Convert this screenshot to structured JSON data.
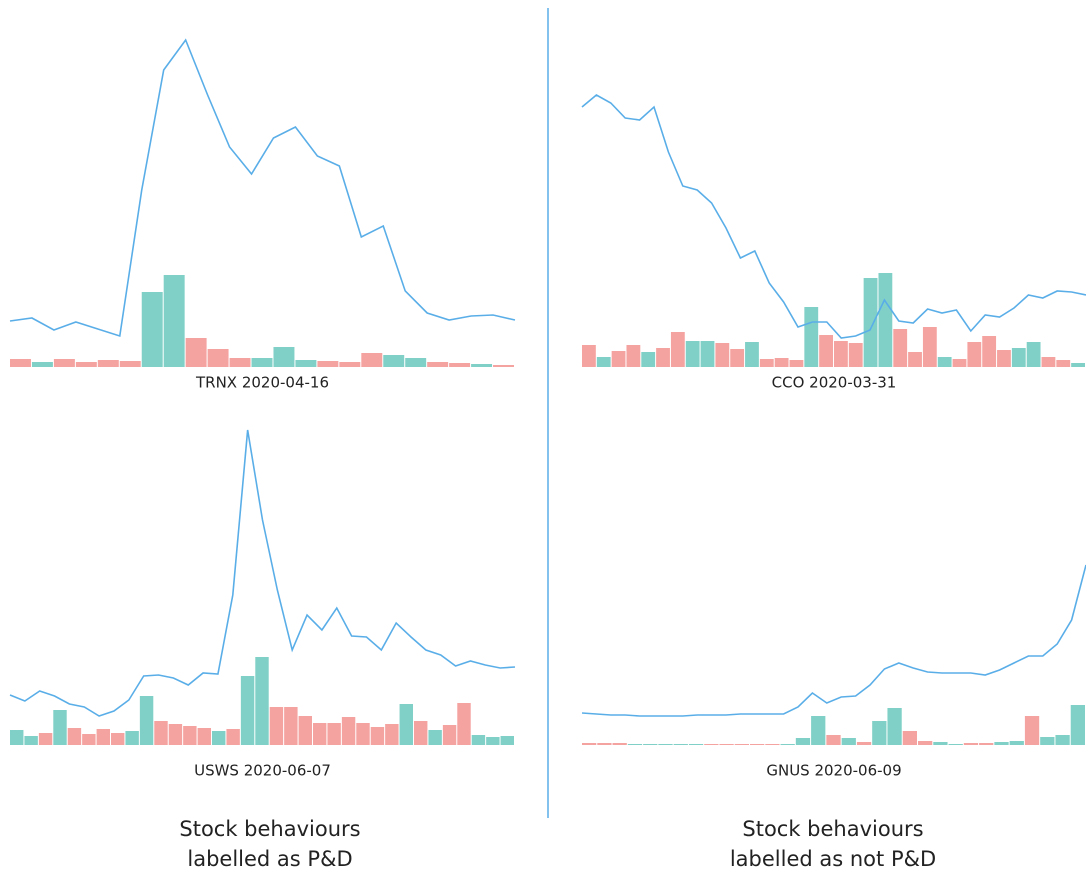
{
  "chart_data": [
    {
      "type": "combo",
      "title": "TRNX 2020-04-16",
      "ylim": [
        0,
        357
      ],
      "line_color": "#5aaee8",
      "line": [
        46,
        49,
        37,
        45,
        38,
        31,
        177,
        297,
        327,
        272,
        220,
        193,
        229,
        240,
        211,
        201,
        130,
        141,
        76,
        54,
        47,
        51,
        52,
        47
      ],
      "bars": [
        8,
        5,
        8,
        5,
        7,
        6,
        75,
        92,
        29,
        18,
        9,
        9,
        20,
        7,
        6,
        5,
        14,
        12,
        9,
        5,
        4,
        3,
        2
      ],
      "bar_colors": [
        "#f5a3a0",
        "#80d0c7",
        "#f5a3a0",
        "#f5a3a0",
        "#f5a3a0",
        "#f5a3a0",
        "#80d0c7",
        "#80d0c7",
        "#f5a3a0",
        "#f5a3a0",
        "#f5a3a0",
        "#80d0c7",
        "#80d0c7",
        "#80d0c7",
        "#f5a3a0",
        "#f5a3a0",
        "#f5a3a0",
        "#80d0c7",
        "#80d0c7",
        "#f5a3a0",
        "#f5a3a0",
        "#80d0c7",
        "#f5a3a0"
      ]
    },
    {
      "type": "combo",
      "title": "CCO 2020-03-31",
      "ylim": [
        0,
        357
      ],
      "line_color": "#5aaee8",
      "line": [
        260,
        272,
        264,
        249,
        247,
        260,
        215,
        181,
        177,
        164,
        139,
        109,
        116,
        84,
        65,
        40,
        45,
        45,
        29,
        31,
        37,
        67,
        46,
        44,
        58,
        54,
        57,
        36,
        52,
        50,
        59,
        72,
        69,
        76,
        75,
        72
      ],
      "bars": [
        22,
        10,
        16,
        22,
        15,
        19,
        35,
        26,
        26,
        24,
        18,
        25,
        8,
        9,
        7,
        60,
        32,
        26,
        24,
        89,
        94,
        38,
        15,
        40,
        10,
        8,
        25,
        31,
        17,
        19,
        25,
        10,
        7,
        4
      ],
      "bar_colors": [
        "#f5a3a0",
        "#80d0c7",
        "#f5a3a0",
        "#f5a3a0",
        "#80d0c7",
        "#f5a3a0",
        "#f5a3a0",
        "#80d0c7",
        "#80d0c7",
        "#f5a3a0",
        "#f5a3a0",
        "#80d0c7",
        "#f5a3a0",
        "#f5a3a0",
        "#f5a3a0",
        "#80d0c7",
        "#f5a3a0",
        "#f5a3a0",
        "#f5a3a0",
        "#80d0c7",
        "#80d0c7",
        "#f5a3a0",
        "#f5a3a0",
        "#f5a3a0",
        "#80d0c7",
        "#f5a3a0",
        "#f5a3a0",
        "#f5a3a0",
        "#f5a3a0",
        "#80d0c7",
        "#80d0c7",
        "#f5a3a0",
        "#f5a3a0",
        "#80d0c7"
      ]
    },
    {
      "type": "combo",
      "title": "USWS 2020-06-07",
      "ylim": [
        0,
        335
      ],
      "line_color": "#5aaee8",
      "line": [
        50,
        44,
        54,
        49,
        41,
        38,
        29,
        34,
        45,
        69,
        70,
        67,
        60,
        72,
        71,
        150,
        315,
        225,
        155,
        95,
        130,
        115,
        137,
        109,
        108,
        95,
        122,
        108,
        95,
        90,
        79,
        84,
        80,
        77,
        78
      ],
      "bars": [
        15,
        9,
        12,
        35,
        17,
        11,
        16,
        12,
        14,
        49,
        24,
        21,
        19,
        17,
        14,
        16,
        69,
        88,
        38,
        38,
        29,
        22,
        22,
        28,
        22,
        18,
        21,
        41,
        24,
        15,
        20,
        42,
        10,
        8,
        9
      ],
      "bar_colors": [
        "#80d0c7",
        "#80d0c7",
        "#f5a3a0",
        "#80d0c7",
        "#f5a3a0",
        "#f5a3a0",
        "#f5a3a0",
        "#f5a3a0",
        "#80d0c7",
        "#80d0c7",
        "#f5a3a0",
        "#f5a3a0",
        "#f5a3a0",
        "#f5a3a0",
        "#80d0c7",
        "#f5a3a0",
        "#80d0c7",
        "#80d0c7",
        "#f5a3a0",
        "#f5a3a0",
        "#f5a3a0",
        "#f5a3a0",
        "#f5a3a0",
        "#f5a3a0",
        "#f5a3a0",
        "#f5a3a0",
        "#f5a3a0",
        "#80d0c7",
        "#f5a3a0",
        "#80d0c7",
        "#f5a3a0",
        "#f5a3a0",
        "#80d0c7",
        "#80d0c7",
        "#80d0c7"
      ]
    },
    {
      "type": "combo",
      "title": "GNUS 2020-06-09",
      "ylim": [
        0,
        335
      ],
      "line_color": "#5aaee8",
      "line": [
        32,
        31,
        30,
        30,
        29,
        29,
        29,
        29,
        30,
        30,
        30,
        31,
        31,
        31,
        31,
        38,
        52,
        42,
        48,
        49,
        60,
        76,
        82,
        77,
        73,
        72,
        72,
        72,
        70,
        75,
        82,
        89,
        89,
        101,
        125,
        180
      ],
      "bars": [
        2,
        2,
        2,
        1,
        1,
        1,
        1,
        1,
        1,
        1,
        1,
        1,
        1,
        1,
        7,
        29,
        10,
        7,
        3,
        24,
        37,
        14,
        4,
        3,
        1,
        2,
        2,
        3,
        4,
        29,
        8,
        10,
        40
      ],
      "bar_colors": [
        "#f5a3a0",
        "#f5a3a0",
        "#f5a3a0",
        "#80d0c7",
        "#80d0c7",
        "#80d0c7",
        "#80d0c7",
        "#80d0c7",
        "#f5a3a0",
        "#f5a3a0",
        "#f5a3a0",
        "#f5a3a0",
        "#f5a3a0",
        "#80d0c7",
        "#80d0c7",
        "#80d0c7",
        "#f5a3a0",
        "#80d0c7",
        "#f5a3a0",
        "#80d0c7",
        "#80d0c7",
        "#f5a3a0",
        "#f5a3a0",
        "#80d0c7",
        "#80d0c7",
        "#f5a3a0",
        "#f5a3a0",
        "#80d0c7",
        "#80d0c7",
        "#f5a3a0",
        "#80d0c7",
        "#80d0c7",
        "#80d0c7"
      ]
    }
  ],
  "captions": [
    [
      "Stock behaviours",
      "labelled as P&D"
    ],
    [
      "Stock behaviours",
      "labelled as not P&D"
    ]
  ]
}
